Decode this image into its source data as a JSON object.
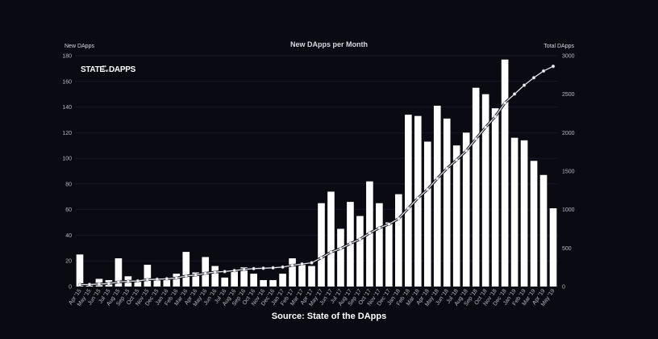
{
  "chart_data": {
    "type": "bar",
    "title": "New DApps per Month",
    "ylabel": "New DApps",
    "y2label": "Total DApps",
    "ylim": [
      0,
      180
    ],
    "y2lim": [
      0,
      3000
    ],
    "yticks": [
      0,
      20,
      40,
      60,
      80,
      100,
      120,
      140,
      160,
      180
    ],
    "y2ticks": [
      0,
      500,
      1000,
      1500,
      2000,
      2500,
      3000
    ],
    "grid": true,
    "categories": [
      "Apr '15",
      "May '15",
      "Jun '15",
      "Jul '15",
      "Aug '15",
      "Sep '15",
      "Oct '15",
      "Nov '15",
      "Dec '15",
      "Jan '16",
      "Feb '16",
      "Mar '16",
      "Apr '16",
      "May '16",
      "Jun '16",
      "Jul '16",
      "Aug '16",
      "Sep '16",
      "Oct '16",
      "Nov '16",
      "Dec '16",
      "Jan '17",
      "Feb '17",
      "Mar '17",
      "Apr '17",
      "May '17",
      "Jun '17",
      "Jul '17",
      "Aug '17",
      "Sep '17",
      "Oct '17",
      "Nov '17",
      "Dec '17",
      "Jan '18",
      "Feb '18",
      "Mar '18",
      "Apr '18",
      "May '18",
      "Jun '18",
      "Jul '18",
      "Aug '18",
      "Sep '18",
      "Oct '18",
      "Nov '18",
      "Dec '18",
      "Jan '19",
      "Feb '19",
      "Mar '19",
      "Apr '19",
      "May '19"
    ],
    "series": [
      {
        "name": "New DApps",
        "axis": "left",
        "kind": "bar",
        "color": "#ffffff",
        "values": [
          25,
          2,
          6,
          5,
          22,
          8,
          5,
          17,
          5,
          6,
          10,
          27,
          11,
          23,
          16,
          7,
          13,
          15,
          10,
          5,
          5,
          10,
          22,
          18,
          16,
          65,
          74,
          45,
          66,
          55,
          82,
          65,
          50,
          72,
          134,
          133,
          113,
          141,
          131,
          110,
          120,
          155,
          150,
          139,
          177,
          116,
          114,
          98,
          87,
          61
        ]
      },
      {
        "name": "Total DApps",
        "axis": "right",
        "kind": "line",
        "color": "#e4e4ea",
        "values": [
          25,
          27,
          33,
          38,
          60,
          68,
          73,
          90,
          95,
          101,
          111,
          138,
          149,
          172,
          188,
          195,
          208,
          223,
          233,
          238,
          243,
          253,
          275,
          293,
          309,
          374,
          448,
          493,
          559,
          614,
          696,
          761,
          811,
          883,
          1017,
          1150,
          1263,
          1404,
          1535,
          1645,
          1765,
          1920,
          2070,
          2209,
          2386,
          2502,
          2616,
          2714,
          2801,
          2862
        ]
      }
    ]
  },
  "logo": {
    "text_left": "STATE",
    "text_of": "OF",
    "text_the": "THE",
    "text_right": "DAPPS"
  },
  "footer": {
    "source": "Source: State of the DApps"
  }
}
